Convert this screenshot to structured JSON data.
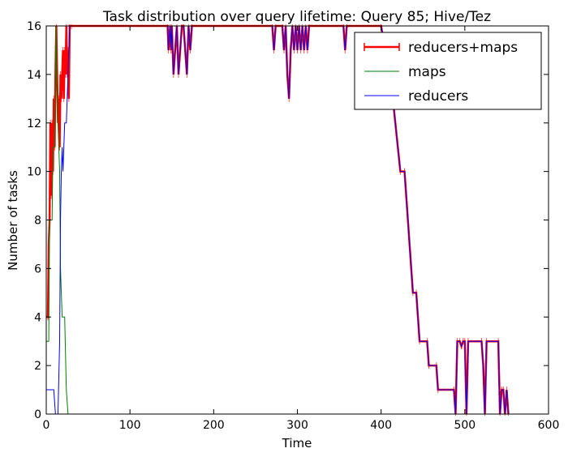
{
  "chart_data": {
    "type": "line",
    "title": "Task distribution over query lifetime: Query 85; Hive/Tez",
    "xlabel": "Time",
    "ylabel": "Number of tasks",
    "xlim": [
      0,
      600
    ],
    "ylim": [
      0,
      16
    ],
    "xticks": [
      0,
      100,
      200,
      300,
      400,
      500,
      600
    ],
    "yticks": [
      0,
      2,
      4,
      6,
      8,
      10,
      12,
      14,
      16
    ],
    "legend_position": "top-right",
    "series": [
      {
        "name": "reducers+maps",
        "color": "#ff0000",
        "style": "thick line with error bars",
        "points": [
          [
            0,
            4
          ],
          [
            2,
            4
          ],
          [
            3,
            7
          ],
          [
            4,
            8
          ],
          [
            5,
            12
          ],
          [
            6,
            9
          ],
          [
            7,
            12
          ],
          [
            8,
            10
          ],
          [
            9,
            13
          ],
          [
            10,
            11
          ],
          [
            11,
            14
          ],
          [
            12,
            16
          ],
          [
            13,
            14
          ],
          [
            14,
            12
          ],
          [
            15,
            13
          ],
          [
            16,
            11
          ],
          [
            17,
            14
          ],
          [
            18,
            13
          ],
          [
            19,
            14
          ],
          [
            20,
            15
          ],
          [
            21,
            13
          ],
          [
            22,
            15
          ],
          [
            23,
            14
          ],
          [
            24,
            16
          ],
          [
            25,
            14
          ],
          [
            26,
            15
          ],
          [
            27,
            13
          ],
          [
            28,
            16
          ],
          [
            30,
            16
          ],
          [
            145,
            16
          ],
          [
            146,
            15
          ],
          [
            148,
            16
          ],
          [
            149,
            15
          ],
          [
            150,
            16
          ],
          [
            152,
            14
          ],
          [
            154,
            15
          ],
          [
            156,
            16
          ],
          [
            158,
            14
          ],
          [
            160,
            15
          ],
          [
            162,
            16
          ],
          [
            164,
            16
          ],
          [
            166,
            15
          ],
          [
            168,
            14
          ],
          [
            170,
            16
          ],
          [
            172,
            15
          ],
          [
            174,
            16
          ],
          [
            270,
            16
          ],
          [
            272,
            15
          ],
          [
            274,
            16
          ],
          [
            282,
            16
          ],
          [
            284,
            15
          ],
          [
            286,
            16
          ],
          [
            288,
            14
          ],
          [
            290,
            13
          ],
          [
            292,
            15
          ],
          [
            294,
            16
          ],
          [
            296,
            15
          ],
          [
            298,
            16
          ],
          [
            300,
            15
          ],
          [
            302,
            16
          ],
          [
            304,
            15
          ],
          [
            306,
            16
          ],
          [
            308,
            15
          ],
          [
            310,
            16
          ],
          [
            312,
            15
          ],
          [
            314,
            16
          ],
          [
            355,
            16
          ],
          [
            357,
            15
          ],
          [
            359,
            16
          ],
          [
            400,
            16
          ],
          [
            405,
            15
          ],
          [
            410,
            14
          ],
          [
            414,
            13
          ],
          [
            417,
            12
          ],
          [
            420,
            11
          ],
          [
            423,
            10
          ],
          [
            428,
            10
          ],
          [
            430,
            9
          ],
          [
            432,
            8
          ],
          [
            434,
            7
          ],
          [
            436,
            6
          ],
          [
            438,
            5
          ],
          [
            442,
            5
          ],
          [
            444,
            4
          ],
          [
            446,
            3
          ],
          [
            455,
            3
          ],
          [
            457,
            2
          ],
          [
            466,
            2
          ],
          [
            468,
            1
          ],
          [
            487,
            1
          ],
          [
            489,
            0
          ],
          [
            491,
            3
          ],
          [
            494,
            3
          ],
          [
            496,
            2.8
          ],
          [
            498,
            3
          ],
          [
            500,
            3
          ],
          [
            502,
            0
          ],
          [
            504,
            3
          ],
          [
            520,
            3
          ],
          [
            522,
            2
          ],
          [
            524,
            0
          ],
          [
            526,
            3
          ],
          [
            540,
            3
          ],
          [
            542,
            0
          ],
          [
            544,
            1
          ],
          [
            546,
            1
          ],
          [
            548,
            0
          ],
          [
            550,
            1
          ],
          [
            552,
            0
          ]
        ]
      },
      {
        "name": "maps",
        "color": "#008000",
        "style": "thin line",
        "points": [
          [
            0,
            3
          ],
          [
            3,
            3
          ],
          [
            4,
            8
          ],
          [
            7,
            8
          ],
          [
            8,
            11
          ],
          [
            10,
            11
          ],
          [
            12,
            16
          ],
          [
            13,
            13
          ],
          [
            14,
            12
          ],
          [
            15,
            11
          ],
          [
            16,
            10
          ],
          [
            17,
            6
          ],
          [
            18,
            5
          ],
          [
            19,
            4
          ],
          [
            22,
            4
          ],
          [
            24,
            1
          ],
          [
            26,
            0
          ],
          [
            560,
            0
          ]
        ]
      },
      {
        "name": "reducers",
        "color": "#0000ff",
        "style": "thin line",
        "points": [
          [
            0,
            1
          ],
          [
            9,
            1
          ],
          [
            11,
            0
          ],
          [
            14,
            0
          ],
          [
            16,
            3
          ],
          [
            17,
            8
          ],
          [
            18,
            10
          ],
          [
            19,
            11
          ],
          [
            20,
            10
          ],
          [
            21,
            11
          ],
          [
            22,
            12
          ],
          [
            24,
            12
          ],
          [
            25,
            13
          ],
          [
            26,
            14
          ],
          [
            28,
            16
          ],
          [
            145,
            16
          ],
          [
            146,
            15
          ],
          [
            148,
            16
          ],
          [
            149,
            15
          ],
          [
            150,
            16
          ],
          [
            152,
            14
          ],
          [
            154,
            15
          ],
          [
            156,
            16
          ],
          [
            158,
            14
          ],
          [
            160,
            15
          ],
          [
            162,
            16
          ],
          [
            164,
            16
          ],
          [
            166,
            15
          ],
          [
            168,
            14
          ],
          [
            170,
            16
          ],
          [
            172,
            15
          ],
          [
            174,
            16
          ],
          [
            270,
            16
          ],
          [
            272,
            15
          ],
          [
            274,
            16
          ],
          [
            282,
            16
          ],
          [
            284,
            15
          ],
          [
            286,
            16
          ],
          [
            288,
            14
          ],
          [
            290,
            13
          ],
          [
            292,
            15
          ],
          [
            294,
            16
          ],
          [
            296,
            15
          ],
          [
            298,
            16
          ],
          [
            300,
            15
          ],
          [
            302,
            16
          ],
          [
            304,
            15
          ],
          [
            306,
            16
          ],
          [
            308,
            15
          ],
          [
            310,
            16
          ],
          [
            312,
            15
          ],
          [
            314,
            16
          ],
          [
            355,
            16
          ],
          [
            357,
            15
          ],
          [
            359,
            16
          ],
          [
            400,
            16
          ],
          [
            405,
            15
          ],
          [
            410,
            14
          ],
          [
            414,
            13
          ],
          [
            417,
            12
          ],
          [
            420,
            11
          ],
          [
            423,
            10
          ],
          [
            428,
            10
          ],
          [
            430,
            9
          ],
          [
            432,
            8
          ],
          [
            434,
            7
          ],
          [
            436,
            6
          ],
          [
            438,
            5
          ],
          [
            442,
            5
          ],
          [
            444,
            4
          ],
          [
            446,
            3
          ],
          [
            455,
            3
          ],
          [
            457,
            2
          ],
          [
            466,
            2
          ],
          [
            468,
            1
          ],
          [
            487,
            1
          ],
          [
            489,
            0
          ],
          [
            491,
            3
          ],
          [
            494,
            3
          ],
          [
            496,
            2.8
          ],
          [
            498,
            3
          ],
          [
            500,
            3
          ],
          [
            502,
            0
          ],
          [
            504,
            3
          ],
          [
            520,
            3
          ],
          [
            522,
            2
          ],
          [
            524,
            0
          ],
          [
            526,
            3
          ],
          [
            540,
            3
          ],
          [
            542,
            0
          ],
          [
            544,
            1
          ],
          [
            546,
            1
          ],
          [
            548,
            0
          ],
          [
            550,
            1
          ],
          [
            552,
            0
          ]
        ]
      }
    ]
  }
}
